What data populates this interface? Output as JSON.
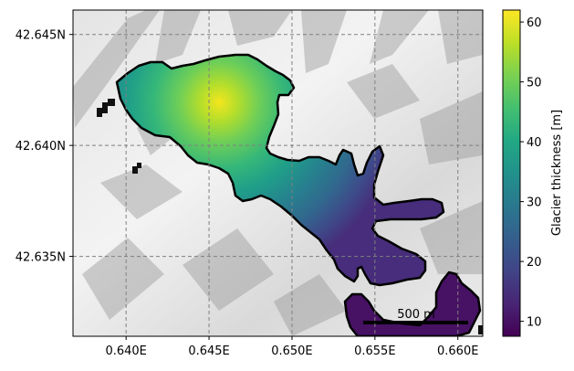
{
  "chart_data": {
    "type": "heatmap",
    "colormap": "viridis",
    "background": "grayscale hillshade terrain",
    "x_ticks": [
      "0.640E",
      "0.645E",
      "0.650E",
      "0.655E",
      "0.660E"
    ],
    "y_ticks": [
      "42.645N",
      "42.640N",
      "42.635N"
    ],
    "x_tick_values": [
      0.64,
      0.645,
      0.65,
      0.655,
      0.66
    ],
    "y_tick_values": [
      42.645,
      42.64,
      42.635
    ],
    "xlim": [
      0.6368,
      0.6615
    ],
    "ylim": [
      42.6314,
      42.6461
    ],
    "grid": true,
    "colorbar": {
      "label": "Glacier thickness [m]",
      "ticks": [
        10,
        20,
        30,
        40,
        50,
        60
      ],
      "range": [
        7.5,
        62
      ]
    },
    "scalebar_label": "500 m",
    "max_thickness_location": [
      0.6458,
      42.6421
    ]
  }
}
